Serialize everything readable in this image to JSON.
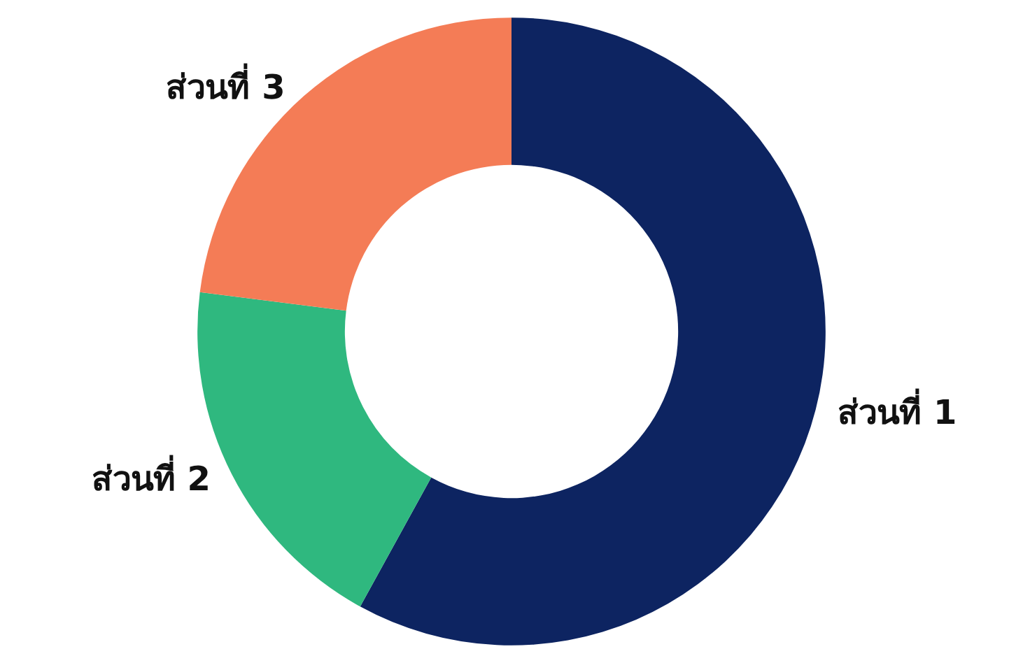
{
  "chart_data": {
    "type": "donut",
    "categories": [
      "ส่วนที่ 1",
      "ส่วนที่ 2",
      "ส่วนที่ 3"
    ],
    "values": [
      58,
      19,
      23
    ],
    "colors": [
      "#0d2461",
      "#2fb87f",
      "#f47c56"
    ]
  }
}
